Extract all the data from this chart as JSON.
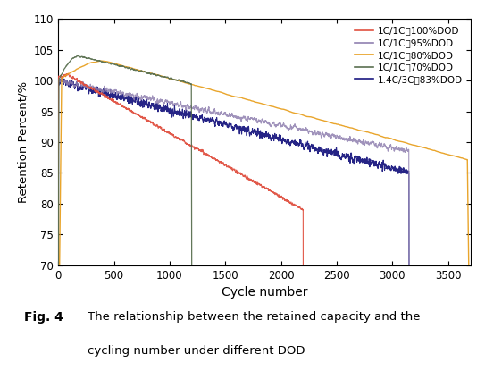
{
  "xlabel": "Cycle number",
  "ylabel": "Retention Percent/%",
  "xlim": [
    0,
    3700
  ],
  "ylim": [
    70,
    110
  ],
  "yticks": [
    70,
    75,
    80,
    85,
    90,
    95,
    100,
    105,
    110
  ],
  "xticks": [
    0,
    500,
    1000,
    1500,
    2000,
    2500,
    3000,
    3500
  ],
  "background_color": "#ffffff",
  "fig_caption": "Fig. 4    The relationship between the retained capacity and the\n        cycling number under different DOD",
  "series": {
    "red_100dod": {
      "color": "#e05040",
      "x_end": 2200,
      "y_start": 100.5,
      "y_end": 79.0,
      "noise": 0.25,
      "label": "1C/1C，100%DOD"
    },
    "purple_95dod": {
      "color": "#9080b0",
      "x_end": 3150,
      "y_start": 100.0,
      "y_end": 88.5,
      "noise": 0.6,
      "label": "1C/1C，95%DOD"
    },
    "orange_80dod": {
      "color": "#e8a020",
      "x_end": 3700,
      "y_peak": 103.2,
      "x_peak": 420,
      "y_end": 87.0,
      "noise": 0.15,
      "label": "1C/1C，80%DOD"
    },
    "green_70dod": {
      "color": "#5a7050",
      "x_end": 1200,
      "y_peak": 104.0,
      "x_peak": 180,
      "y_end": 99.5,
      "noise": 0.2,
      "label": "1C/1C，70%DOD"
    },
    "darkblue_83dod": {
      "color": "#1a1880",
      "x_end": 3150,
      "y_start": 100.0,
      "y_end": 85.0,
      "noise": 0.7,
      "label": "1.4C/3C，83%DOD"
    }
  }
}
